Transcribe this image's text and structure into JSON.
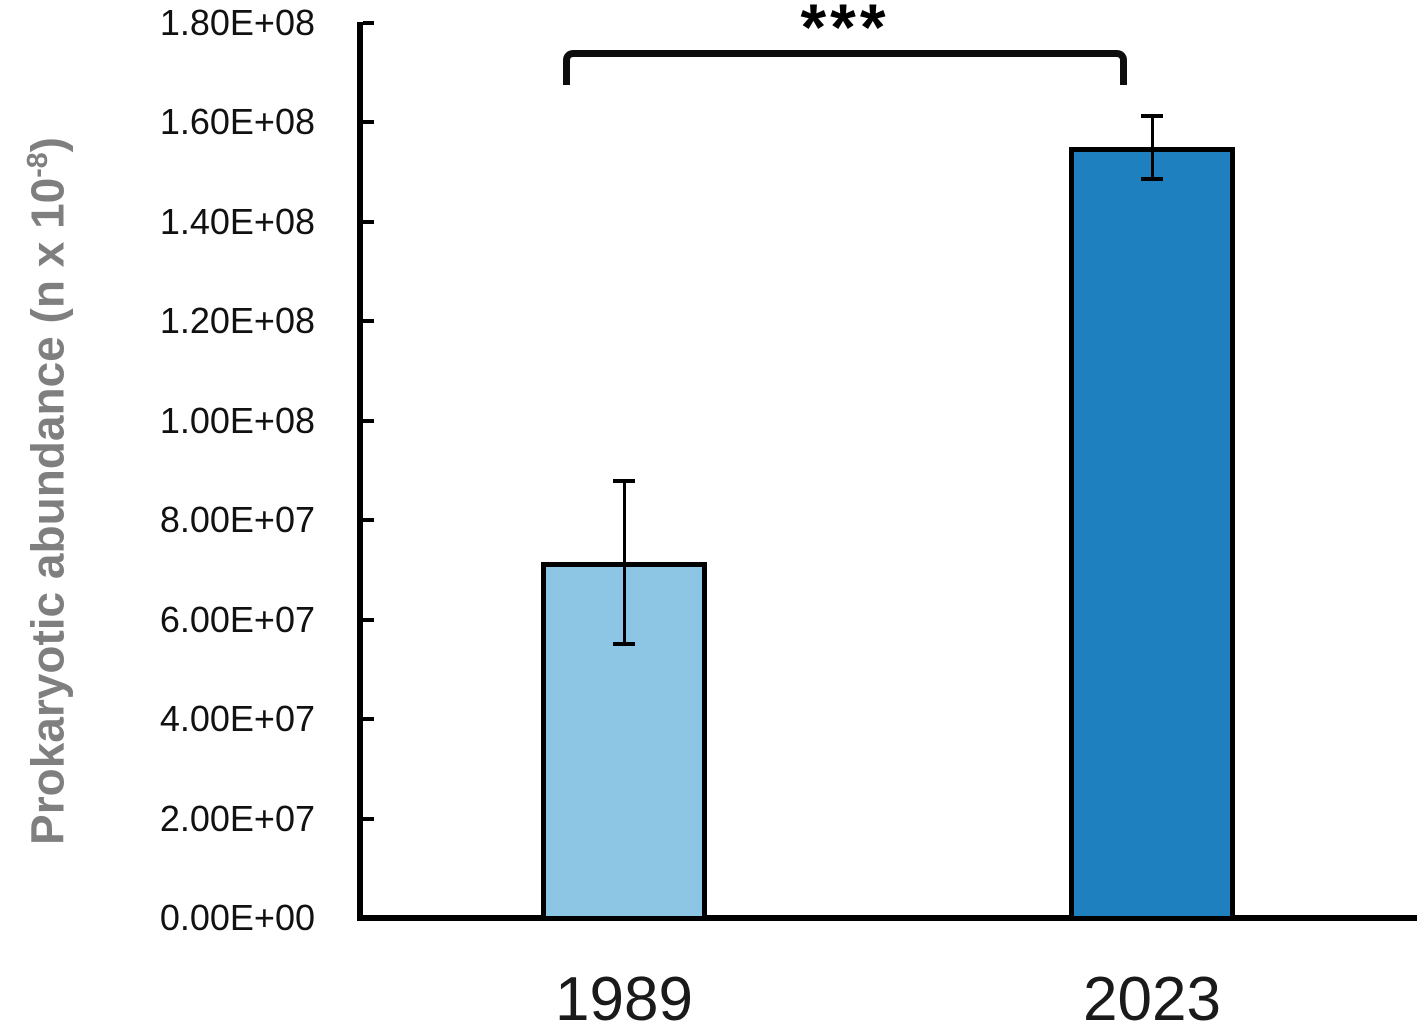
{
  "chart_data": {
    "type": "bar",
    "title": "",
    "xlabel": "",
    "ylabel": "Prokaryotic abundance (n x 10⁻⁸)",
    "ylabel_parts": {
      "main": "Prokaryotic abundance (n x 10",
      "sup": "-8",
      "close": ")"
    },
    "categories": [
      "1989",
      "2023"
    ],
    "values": [
      71500000,
      155000000
    ],
    "errors": [
      16300000,
      6300000
    ],
    "bar_colors": [
      "#8DC5E5",
      "#1F80BF"
    ],
    "bar_border_color": "#000000",
    "ylim": [
      0,
      180000000
    ],
    "yticks": [
      "0.00E+00",
      "2.00E+07",
      "4.00E+07",
      "6.00E+07",
      "8.00E+07",
      "1.00E+08",
      "1.20E+08",
      "1.40E+08",
      "1.60E+08",
      "1.80E+08"
    ],
    "ytick_values": [
      0,
      20000000,
      40000000,
      60000000,
      80000000,
      100000000,
      120000000,
      140000000,
      160000000,
      180000000
    ],
    "grid": false,
    "legend": false,
    "axis_color": "#000000",
    "ylabel_color": "#7F7F7F",
    "significance": {
      "label": "***",
      "between": [
        "1989",
        "2023"
      ]
    }
  }
}
